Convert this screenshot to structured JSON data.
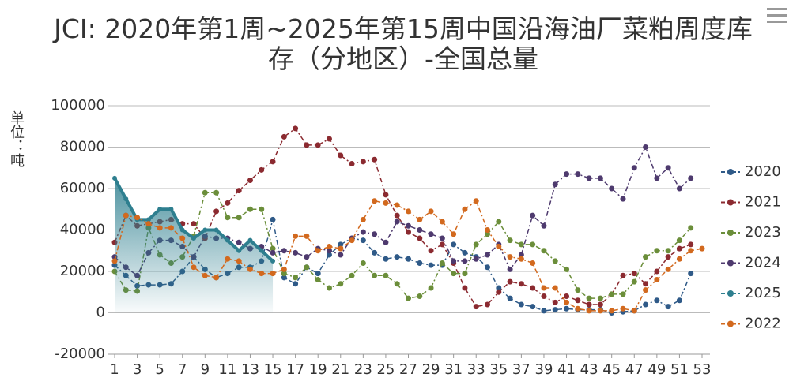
{
  "chart_data": {
    "type": "line",
    "title": "JCI: 2020年第1周~2025年第15周中国沿海油厂菜粕周度库存（分地区）-全国总量",
    "y_label": "单位：吨",
    "x": [
      1,
      2,
      3,
      4,
      5,
      6,
      7,
      8,
      9,
      10,
      11,
      12,
      13,
      14,
      15,
      16,
      17,
      18,
      19,
      20,
      21,
      22,
      23,
      24,
      25,
      26,
      27,
      28,
      29,
      30,
      31,
      32,
      33,
      34,
      35,
      36,
      37,
      38,
      39,
      40,
      41,
      42,
      43,
      44,
      45,
      46,
      47,
      48,
      49,
      50,
      51,
      52,
      53
    ],
    "xlim": [
      1,
      53
    ],
    "xticks": [
      1,
      3,
      5,
      7,
      9,
      11,
      13,
      15,
      17,
      19,
      21,
      23,
      25,
      27,
      29,
      31,
      33,
      35,
      37,
      39,
      41,
      43,
      45,
      47,
      49,
      51,
      53
    ],
    "ylim": [
      -20000,
      100000
    ],
    "yticks": [
      -20000,
      0,
      20000,
      40000,
      60000,
      80000,
      100000
    ],
    "grid": true,
    "legend": "right",
    "series": [
      {
        "name": "2020",
        "color": "#2f5a88",
        "values": [
          23000,
          18000,
          13000,
          13500,
          13500,
          14000,
          20000,
          27000,
          21000,
          17000,
          19000,
          22000,
          22000,
          25000,
          45000,
          17000,
          14000,
          22000,
          19000,
          28000,
          33000,
          36000,
          35000,
          29000,
          26000,
          27000,
          26000,
          24000,
          23000,
          23000,
          33000,
          29000,
          27000,
          22000,
          12000,
          7000,
          4000,
          3000,
          1000,
          1500,
          2000,
          1500,
          1500,
          1500,
          0,
          500,
          1000,
          4000,
          6000,
          3000,
          6000,
          19000,
          null
        ]
      },
      {
        "name": "2021",
        "color": "#8b2a30",
        "values": [
          34000,
          47000,
          42000,
          43000,
          44000,
          45000,
          43000,
          43000,
          36000,
          49000,
          53000,
          59000,
          64000,
          69000,
          73000,
          85000,
          89000,
          81000,
          81000,
          84000,
          76000,
          72000,
          73000,
          74000,
          57000,
          47000,
          39000,
          36000,
          30000,
          33000,
          24000,
          12000,
          3000,
          4000,
          10000,
          15000,
          14000,
          12000,
          8000,
          5000,
          8000,
          6000,
          4000,
          4000,
          9000,
          18000,
          19000,
          14000,
          20000,
          27000,
          31000,
          33000,
          null
        ]
      },
      {
        "name": "2023",
        "color": "#6b8e3a",
        "values": [
          20000,
          11000,
          10500,
          41000,
          28000,
          24000,
          27000,
          37000,
          58000,
          58000,
          46000,
          46000,
          50000,
          50000,
          31000,
          19000,
          17000,
          22000,
          16000,
          12000,
          14000,
          18000,
          24000,
          18000,
          18000,
          14000,
          7000,
          8000,
          12000,
          24000,
          19000,
          19000,
          33000,
          38000,
          44000,
          35000,
          33000,
          33000,
          30000,
          25000,
          21000,
          11000,
          7000,
          7000,
          9000,
          9000,
          15000,
          27000,
          30000,
          30000,
          35000,
          41000,
          null
        ]
      },
      {
        "name": "2024",
        "color": "#4e3a6e",
        "values": [
          27000,
          22000,
          18000,
          29000,
          35000,
          35000,
          32000,
          27000,
          37000,
          36000,
          36000,
          34000,
          31000,
          32000,
          29000,
          30000,
          29000,
          27000,
          31000,
          30000,
          28000,
          36000,
          39000,
          38000,
          34000,
          44000,
          42000,
          40000,
          38000,
          36000,
          25000,
          25000,
          26000,
          28000,
          33000,
          21000,
          28000,
          47000,
          42000,
          62000,
          67000,
          67000,
          65000,
          65000,
          60000,
          55000,
          70000,
          80000,
          65000,
          70000,
          60000,
          65000,
          null
        ]
      },
      {
        "name": "2025",
        "color": "#2e7f8f",
        "area": true,
        "values": [
          65000,
          55000,
          45000,
          45000,
          50000,
          50000,
          40000,
          36000,
          40000,
          40000,
          35000,
          30000,
          35000,
          30000,
          25000,
          null,
          null,
          null,
          null,
          null,
          null,
          null,
          null,
          null,
          null,
          null,
          null,
          null,
          null,
          null,
          null,
          null,
          null,
          null,
          null,
          null,
          null,
          null,
          null,
          null,
          null,
          null,
          null,
          null,
          null,
          null,
          null,
          null,
          null,
          null,
          null,
          null,
          null
        ]
      },
      {
        "name": "2022",
        "color": "#d2691e",
        "values": [
          25000,
          47000,
          46000,
          43000,
          41000,
          41000,
          36000,
          22000,
          18000,
          17000,
          26000,
          25000,
          21000,
          19000,
          19000,
          21000,
          37000,
          37000,
          30000,
          32000,
          31000,
          35000,
          45000,
          54000,
          53000,
          52000,
          49000,
          45000,
          49000,
          44000,
          38000,
          50000,
          54000,
          40000,
          32000,
          27000,
          26000,
          24000,
          12000,
          12000,
          5000,
          2000,
          1000,
          1000,
          1000,
          2000,
          1000,
          11000,
          16000,
          21000,
          26000,
          30000,
          31000
        ]
      }
    ]
  }
}
